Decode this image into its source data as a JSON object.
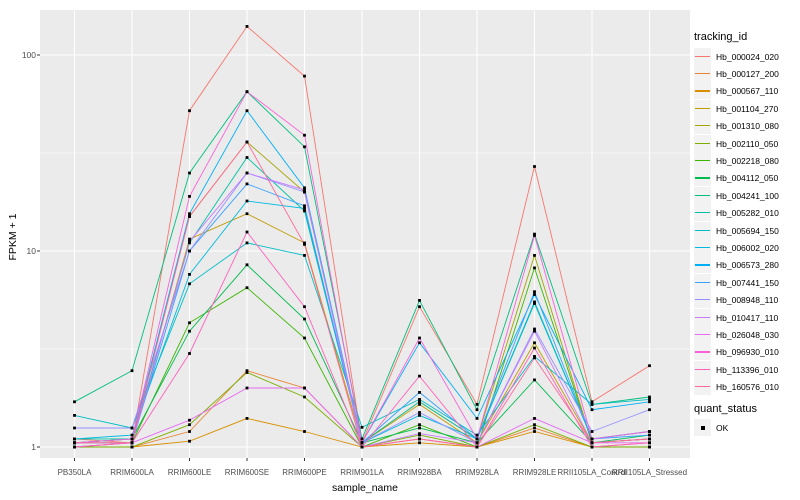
{
  "chart_data": {
    "type": "line",
    "xlabel": "sample_name",
    "ylabel": "FPKM + 1",
    "yscale": "log10",
    "yticks": [
      1,
      10,
      100
    ],
    "ylim": [
      0.93,
      170
    ],
    "grid": true,
    "panel_bg": "#EBEBEB",
    "grid_color": "#FFFFFF",
    "marker": "black-square",
    "legend_position": "right",
    "legend_titles": {
      "color": "tracking_id",
      "shape": "quant_status"
    },
    "shape_legend": [
      {
        "label": "OK",
        "marker": "black-square"
      }
    ],
    "categories": [
      "PB350LA",
      "RRIM600LA",
      "RRIM600LE",
      "RRIM600SE",
      "RRIM600PE",
      "RRIM901LA",
      "RRIM928BA",
      "RRIM928LA",
      "RRIM928LE",
      "RRII105LA_Control",
      "RRII105LA_Stressed"
    ],
    "series": [
      {
        "name": "Hb_000024_020",
        "color": "#F8766D",
        "values": [
          1.1,
          1.05,
          52,
          140,
          78,
          1.05,
          5.2,
          1.65,
          27,
          1.7,
          2.6
        ]
      },
      {
        "name": "Hb_000127_200",
        "color": "#EA8331",
        "values": [
          1.0,
          1.0,
          1.2,
          2.45,
          2.0,
          1.0,
          1.1,
          1.0,
          1.25,
          1.0,
          1.05
        ]
      },
      {
        "name": "Hb_000567_110",
        "color": "#D89000",
        "values": [
          1.0,
          1.0,
          1.07,
          1.4,
          1.2,
          1.0,
          1.05,
          1.0,
          1.2,
          1.0,
          1.0
        ]
      },
      {
        "name": "Hb_001104_270",
        "color": "#C09B00",
        "values": [
          1.05,
          1.05,
          11.5,
          15.5,
          11,
          1.05,
          1.65,
          1.05,
          3.4,
          1.05,
          1.1
        ]
      },
      {
        "name": "Hb_001310_080",
        "color": "#A3A500",
        "values": [
          1.05,
          1.1,
          15,
          36,
          20,
          1.05,
          1.7,
          1.1,
          9.5,
          1.05,
          1.1
        ]
      },
      {
        "name": "Hb_002110_050",
        "color": "#7CAE00",
        "values": [
          1.0,
          1.0,
          1.3,
          2.4,
          1.8,
          1.0,
          1.15,
          1.0,
          1.3,
          1.0,
          1.0
        ]
      },
      {
        "name": "Hb_002218_080",
        "color": "#39B600",
        "values": [
          1.0,
          1.05,
          4.3,
          6.5,
          3.6,
          1.0,
          1.3,
          1.0,
          8.2,
          1.05,
          1.1
        ]
      },
      {
        "name": "Hb_004112_050",
        "color": "#00BB4E",
        "values": [
          1.05,
          1.1,
          3.9,
          8.5,
          4.5,
          1.05,
          1.25,
          1.05,
          2.2,
          1.05,
          1.15
        ]
      },
      {
        "name": "Hb_004241_100",
        "color": "#00BF7D",
        "values": [
          1.7,
          2.45,
          25,
          65,
          34,
          1.1,
          5.6,
          1.55,
          12.2,
          1.65,
          1.8
        ]
      },
      {
        "name": "Hb_005282_010",
        "color": "#00C1A3",
        "values": [
          1.1,
          1.1,
          11,
          30,
          16,
          1.05,
          1.7,
          1.1,
          5.4,
          1.1,
          1.2
        ]
      },
      {
        "name": "Hb_005694_150",
        "color": "#00BFC4",
        "values": [
          1.45,
          1.25,
          6.8,
          11,
          9.5,
          1.26,
          1.75,
          1.15,
          2.9,
          1.65,
          1.75
        ]
      },
      {
        "name": "Hb_006002_020",
        "color": "#00BAE0",
        "values": [
          1.1,
          1.15,
          7.6,
          18,
          16.5,
          1.05,
          1.45,
          1.1,
          5.5,
          1.1,
          1.2
        ]
      },
      {
        "name": "Hb_006573_280",
        "color": "#00B0F6",
        "values": [
          1.05,
          1.1,
          15.5,
          52,
          21,
          1.05,
          3.4,
          1.4,
          6.0,
          1.55,
          1.7
        ]
      },
      {
        "name": "Hb_007441_150",
        "color": "#35A2FF",
        "values": [
          1.05,
          1.05,
          10,
          22,
          17,
          1.05,
          1.9,
          1.1,
          6.2,
          1.1,
          1.15
        ]
      },
      {
        "name": "Hb_008948_110",
        "color": "#9590FF",
        "values": [
          1.25,
          1.25,
          10,
          25,
          20,
          1.05,
          1.5,
          1.05,
          4.0,
          1.2,
          1.55
        ]
      },
      {
        "name": "Hb_010417_110",
        "color": "#C77CFF",
        "values": [
          1.05,
          1.05,
          11.2,
          25,
          20.5,
          1.0,
          1.17,
          1.05,
          3.9,
          1.05,
          1.1
        ]
      },
      {
        "name": "Hb_026048_030",
        "color": "#E76BF3",
        "values": [
          1.0,
          1.05,
          1.37,
          2.0,
          2.0,
          1.0,
          1.1,
          1.0,
          1.4,
          1.05,
          1.05
        ]
      },
      {
        "name": "Hb_096930_010",
        "color": "#FA62DB",
        "values": [
          1.05,
          1.1,
          19,
          65,
          39,
          1.05,
          3.6,
          1.1,
          12.0,
          1.1,
          1.2
        ]
      },
      {
        "name": "Hb_113396_010",
        "color": "#FF62BC",
        "values": [
          1.0,
          1.05,
          3.0,
          12.5,
          5.2,
          1.0,
          2.3,
          1.0,
          3.2,
          1.0,
          1.05
        ]
      },
      {
        "name": "Hb_160576_010",
        "color": "#FF6A98",
        "values": [
          1.05,
          1.05,
          15,
          36,
          10.8,
          1.0,
          1.1,
          1.0,
          2.85,
          1.05,
          1.1
        ]
      }
    ]
  }
}
